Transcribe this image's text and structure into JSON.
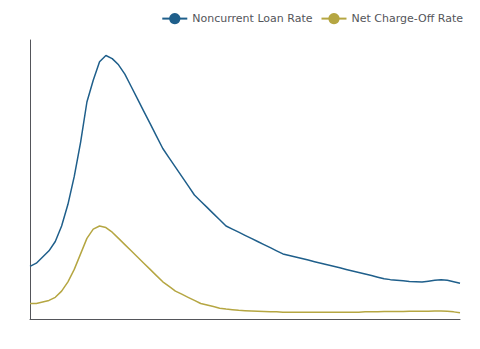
{
  "chart_data": {
    "type": "line",
    "x": [
      0,
      1,
      2,
      3,
      4,
      5,
      6,
      7,
      8,
      9,
      10,
      11,
      12,
      13,
      14,
      15,
      16,
      17,
      18,
      19,
      20,
      21,
      22,
      23,
      24,
      25,
      26,
      27,
      28,
      29,
      30,
      31,
      32,
      33,
      34,
      35,
      36,
      37,
      38,
      39,
      40,
      41,
      42,
      43,
      44,
      45,
      46,
      47,
      48,
      49,
      50,
      51,
      52,
      53,
      54,
      55,
      56,
      57,
      58,
      59,
      60,
      61,
      62,
      63,
      64,
      65,
      66,
      67,
      68
    ],
    "series": [
      {
        "name": "Noncurrent Loan Rate",
        "color": "#1f5f8b",
        "values": [
          2.2,
          2.3,
          2.5,
          2.7,
          3.0,
          3.5,
          4.2,
          5.1,
          6.2,
          7.5,
          8.2,
          8.8,
          9.0,
          8.9,
          8.7,
          8.4,
          8.0,
          7.6,
          7.2,
          6.8,
          6.4,
          6.0,
          5.7,
          5.4,
          5.1,
          4.8,
          4.5,
          4.3,
          4.1,
          3.9,
          3.7,
          3.5,
          3.4,
          3.3,
          3.2,
          3.1,
          3.0,
          2.9,
          2.8,
          2.7,
          2.6,
          2.55,
          2.5,
          2.45,
          2.4,
          2.35,
          2.3,
          2.25,
          2.2,
          2.15,
          2.1,
          2.05,
          2.0,
          1.95,
          1.9,
          1.85,
          1.8,
          1.77,
          1.75,
          1.73,
          1.71,
          1.7,
          1.69,
          1.72,
          1.75,
          1.77,
          1.75,
          1.7,
          1.65
        ]
      },
      {
        "name": "Net Charge-Off Rate",
        "color": "#b5a642",
        "values": [
          1.0,
          1.0,
          1.05,
          1.1,
          1.2,
          1.4,
          1.7,
          2.1,
          2.6,
          3.1,
          3.4,
          3.5,
          3.45,
          3.3,
          3.1,
          2.9,
          2.7,
          2.5,
          2.3,
          2.1,
          1.9,
          1.7,
          1.55,
          1.4,
          1.3,
          1.2,
          1.1,
          1.0,
          0.95,
          0.9,
          0.85,
          0.82,
          0.8,
          0.78,
          0.77,
          0.76,
          0.75,
          0.74,
          0.73,
          0.73,
          0.72,
          0.72,
          0.72,
          0.72,
          0.72,
          0.72,
          0.72,
          0.72,
          0.72,
          0.72,
          0.72,
          0.72,
          0.72,
          0.73,
          0.73,
          0.73,
          0.74,
          0.74,
          0.74,
          0.74,
          0.75,
          0.75,
          0.75,
          0.75,
          0.76,
          0.76,
          0.75,
          0.73,
          0.7
        ]
      }
    ],
    "xlim": [
      0,
      68
    ],
    "ylim": [
      0.5,
      9.5
    ],
    "tick_labels": false,
    "grid": false,
    "legend": "upper right"
  }
}
